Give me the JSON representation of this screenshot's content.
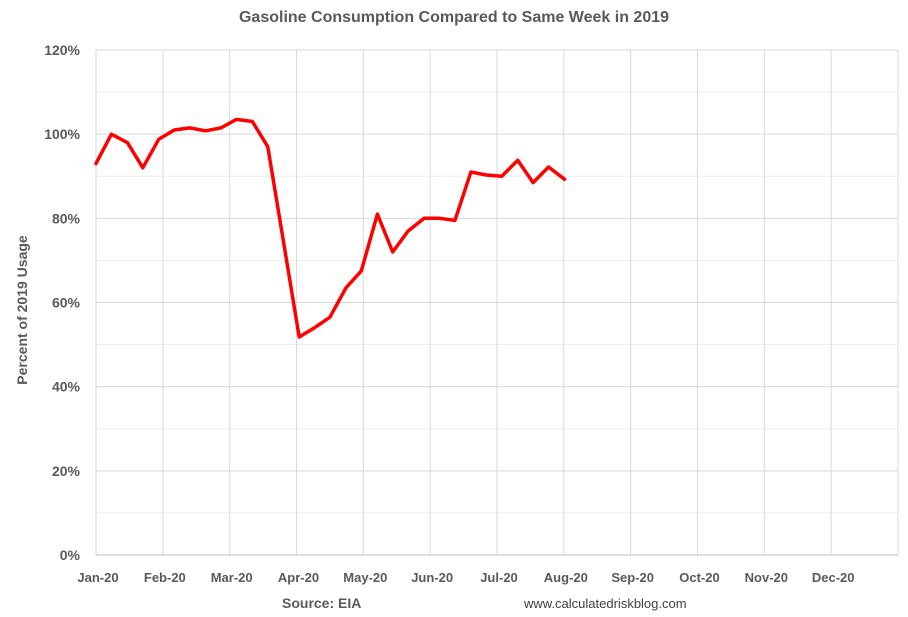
{
  "chart_data": {
    "type": "line",
    "title": "Gasoline Consumption Compared to Same Week in 2019",
    "xlabel": "",
    "ylabel": "Percent of 2019 Usage",
    "source": "Source: EIA",
    "website": "www.calculatedriskblog.com",
    "categories": [
      "Jan-20",
      "Feb-20",
      "Mar-20",
      "Apr-20",
      "May-20",
      "Jun-20",
      "Jul-20",
      "Aug-20",
      "Sep-20",
      "Oct-20",
      "Nov-20",
      "Dec-20"
    ],
    "xlim": [
      0,
      12
    ],
    "ylim": [
      0,
      120
    ],
    "yticks": [
      0,
      20,
      40,
      60,
      80,
      100,
      120
    ],
    "ytick_labels": [
      "0%",
      "20%",
      "40%",
      "60%",
      "80%",
      "100%",
      "120%"
    ],
    "grid": true,
    "line_color": "#ff0000",
    "series": [
      {
        "points": [
          [
            0.0,
            93
          ],
          [
            0.23,
            100
          ],
          [
            0.47,
            98
          ],
          [
            0.7,
            92
          ],
          [
            0.94,
            98.8
          ],
          [
            1.17,
            101
          ],
          [
            1.4,
            101.5
          ],
          [
            1.64,
            100.8
          ],
          [
            1.87,
            101.5
          ],
          [
            2.1,
            103.5
          ],
          [
            2.34,
            103
          ],
          [
            2.57,
            97
          ],
          [
            2.8,
            75
          ],
          [
            3.04,
            51.8
          ],
          [
            3.27,
            54
          ],
          [
            3.5,
            56.5
          ],
          [
            3.74,
            63.5
          ],
          [
            3.97,
            67.5
          ],
          [
            4.21,
            81
          ],
          [
            4.44,
            72
          ],
          [
            4.67,
            77
          ],
          [
            4.91,
            80
          ],
          [
            5.14,
            80
          ],
          [
            5.37,
            79.5
          ],
          [
            5.61,
            91
          ],
          [
            5.84,
            90.3
          ],
          [
            6.07,
            90
          ],
          [
            6.31,
            93.8
          ],
          [
            6.54,
            88.5
          ],
          [
            6.77,
            92.2
          ],
          [
            7.01,
            89.3
          ]
        ]
      }
    ]
  }
}
